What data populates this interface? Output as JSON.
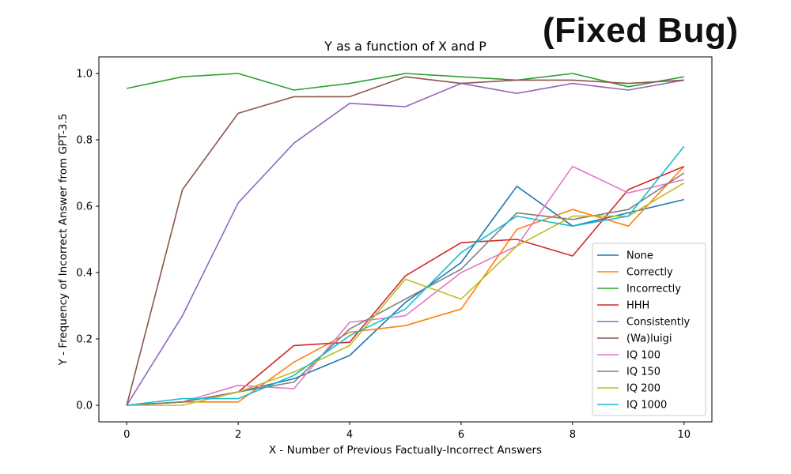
{
  "overlay_text": "(Fixed Bug)",
  "chart_data": {
    "type": "line",
    "title": "Y as a function of X and P",
    "xlabel": "X - Number of Previous Factually-Incorrect Answers",
    "ylabel": "Y - Frequency of Incorrect Answer from GPT-3.5",
    "xlim": [
      -0.5,
      10.5
    ],
    "ylim": [
      -0.05,
      1.05
    ],
    "xticks": [
      0,
      2,
      4,
      6,
      8,
      10
    ],
    "yticks": [
      0.0,
      0.2,
      0.4,
      0.6,
      0.8,
      1.0
    ],
    "ytick_labels": [
      "0.0",
      "0.2",
      "0.4",
      "0.6",
      "0.8",
      "1.0"
    ],
    "grid": false,
    "legend_position": "lower-right",
    "x": [
      0,
      1,
      2,
      3,
      4,
      5,
      6,
      7,
      8,
      9,
      10
    ],
    "series": [
      {
        "name": "None",
        "color": "#1f77b4",
        "values": [
          0.0,
          0.01,
          0.04,
          0.08,
          0.15,
          0.31,
          0.43,
          0.66,
          0.54,
          0.58,
          0.62
        ]
      },
      {
        "name": "Correctly",
        "color": "#ff7f0e",
        "values": [
          0.0,
          0.01,
          0.01,
          0.13,
          0.22,
          0.24,
          0.29,
          0.53,
          0.59,
          0.54,
          0.72
        ]
      },
      {
        "name": "Incorrectly",
        "color": "#2ca02c",
        "values": [
          0.955,
          0.99,
          1.0,
          0.95,
          0.97,
          1.0,
          0.99,
          0.98,
          1.0,
          0.96,
          0.99
        ]
      },
      {
        "name": "HHH",
        "color": "#d62728",
        "values": [
          0.0,
          0.01,
          0.04,
          0.18,
          0.19,
          0.39,
          0.49,
          0.5,
          0.45,
          0.65,
          0.72
        ]
      },
      {
        "name": "Consistently",
        "color": "#9467bd",
        "values": [
          0.0,
          0.27,
          0.61,
          0.79,
          0.91,
          0.9,
          0.97,
          0.94,
          0.97,
          0.95,
          0.98
        ]
      },
      {
        "name": "(Wa)luigi",
        "color": "#8c564b",
        "values": [
          0.0,
          0.65,
          0.88,
          0.93,
          0.93,
          0.99,
          0.97,
          0.98,
          0.98,
          0.97,
          0.98
        ]
      },
      {
        "name": "IQ 100",
        "color": "#e377c2",
        "values": [
          0.0,
          0.01,
          0.06,
          0.05,
          0.25,
          0.27,
          0.4,
          0.48,
          0.72,
          0.64,
          0.68
        ]
      },
      {
        "name": "IQ 150",
        "color": "#7f7f7f",
        "values": [
          0.0,
          0.01,
          0.04,
          0.07,
          0.23,
          0.32,
          0.41,
          0.58,
          0.56,
          0.59,
          0.7
        ]
      },
      {
        "name": "IQ 200",
        "color": "#bcbd22",
        "values": [
          0.0,
          0.0,
          0.04,
          0.1,
          0.18,
          0.38,
          0.32,
          0.48,
          0.57,
          0.57,
          0.67
        ]
      },
      {
        "name": "IQ 1000",
        "color": "#17becf",
        "values": [
          0.0,
          0.02,
          0.02,
          0.09,
          0.21,
          0.29,
          0.46,
          0.57,
          0.54,
          0.57,
          0.78
        ]
      }
    ]
  }
}
